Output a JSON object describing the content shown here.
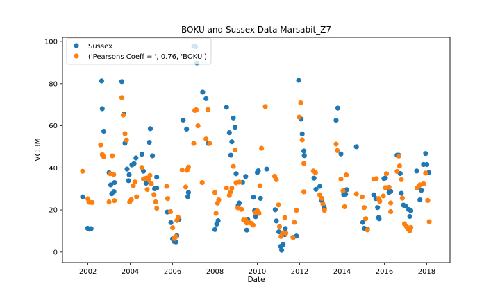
{
  "chart_data": {
    "type": "scatter",
    "title": "BOKU and Sussex Data Marsabit_Z7",
    "xlabel": "Date",
    "ylabel": "VCI3M",
    "xlim": [
      2000.8,
      2019.1
    ],
    "ylim": [
      -5,
      102
    ],
    "xticks": [
      2002,
      2004,
      2006,
      2008,
      2010,
      2012,
      2014,
      2016,
      2018
    ],
    "xtick_labels": [
      "2002",
      "2004",
      "2006",
      "2008",
      "2010",
      "2012",
      "2014",
      "2016",
      "2018"
    ],
    "yticks": [
      0,
      20,
      40,
      60,
      80,
      100
    ],
    "ytick_labels": [
      "0",
      "20",
      "40",
      "60",
      "80",
      "100"
    ],
    "grid": false,
    "legend_position": "top-left",
    "series": [
      {
        "name": "Sussex",
        "color": "#1f77b4",
        "points": [
          [
            2001.75,
            26.2
          ],
          [
            2001.99,
            11.3
          ],
          [
            2002.09,
            10.9
          ],
          [
            2002.15,
            11.1
          ],
          [
            2002.65,
            81.3
          ],
          [
            2002.68,
            68.1
          ],
          [
            2002.75,
            57.4
          ],
          [
            2003.0,
            37.7
          ],
          [
            2003.08,
            31.9
          ],
          [
            2003.13,
            27.7
          ],
          [
            2003.23,
            28.7
          ],
          [
            2003.26,
            33.0
          ],
          [
            2003.6,
            81.0
          ],
          [
            2003.7,
            65.6
          ],
          [
            2003.75,
            51.7
          ],
          [
            2003.85,
            39.4
          ],
          [
            2003.92,
            33.9
          ],
          [
            2003.95,
            36.7
          ],
          [
            2004.08,
            41.4
          ],
          [
            2004.18,
            42.0
          ],
          [
            2004.27,
            44.7
          ],
          [
            2004.55,
            46.5
          ],
          [
            2004.62,
            38.4
          ],
          [
            2004.75,
            32.7
          ],
          [
            2004.83,
            34.6
          ],
          [
            2004.9,
            52.1
          ],
          [
            2004.95,
            58.6
          ],
          [
            2005.05,
            45.7
          ],
          [
            2005.15,
            30.1
          ],
          [
            2005.25,
            35.6
          ],
          [
            2005.25,
            30.4
          ],
          [
            2005.75,
            19.0
          ],
          [
            2005.92,
            14.0
          ],
          [
            2006.0,
            6.3
          ],
          [
            2006.08,
            5.0
          ],
          [
            2006.16,
            4.8
          ],
          [
            2006.2,
            7.8
          ],
          [
            2006.3,
            15.5
          ],
          [
            2006.5,
            62.7
          ],
          [
            2006.66,
            58.4
          ],
          [
            2006.72,
            26.3
          ],
          [
            2006.75,
            28.3
          ],
          [
            2007.0,
            97.8
          ],
          [
            2007.08,
            97.6
          ],
          [
            2007.15,
            89.8
          ],
          [
            2007.42,
            76.0
          ],
          [
            2007.58,
            72.9
          ],
          [
            2007.68,
            51.6
          ],
          [
            2008.0,
            10.7
          ],
          [
            2008.08,
            13.3
          ],
          [
            2008.15,
            14.9
          ],
          [
            2008.55,
            68.8
          ],
          [
            2008.68,
            56.7
          ],
          [
            2008.75,
            46.0
          ],
          [
            2008.8,
            52.4
          ],
          [
            2008.87,
            63.7
          ],
          [
            2008.95,
            59.3
          ],
          [
            2009.0,
            37.2
          ],
          [
            2009.1,
            22.2
          ],
          [
            2009.15,
            23.3
          ],
          [
            2009.3,
            33.1
          ],
          [
            2009.45,
            35.9
          ],
          [
            2009.5,
            10.4
          ],
          [
            2009.55,
            15.4
          ],
          [
            2009.82,
            26.0
          ],
          [
            2009.87,
            19.6
          ],
          [
            2009.92,
            16.8
          ],
          [
            2010.0,
            37.8
          ],
          [
            2010.05,
            38.6
          ],
          [
            2010.15,
            25.5
          ],
          [
            2010.45,
            39.4
          ],
          [
            2010.85,
            20.1
          ],
          [
            2010.9,
            14.8
          ],
          [
            2011.02,
            9.6
          ],
          [
            2011.1,
            2.7
          ],
          [
            2011.15,
            0.9
          ],
          [
            2011.22,
            3.6
          ],
          [
            2011.3,
            8.3
          ],
          [
            2011.32,
            11.2
          ],
          [
            2011.7,
            7.0
          ],
          [
            2011.85,
            7.6
          ],
          [
            2011.95,
            81.6
          ],
          [
            2012.07,
            63.2
          ],
          [
            2012.12,
            56.1
          ],
          [
            2012.2,
            48.0
          ],
          [
            2012.22,
            45.8
          ],
          [
            2012.68,
            35.1
          ],
          [
            2012.77,
            29.8
          ],
          [
            2012.95,
            31.2
          ],
          [
            2013.05,
            24.4
          ],
          [
            2013.15,
            21.5
          ],
          [
            2013.17,
            20.7
          ],
          [
            2013.72,
            62.6
          ],
          [
            2013.8,
            68.4
          ],
          [
            2013.95,
            46.6
          ],
          [
            2014.08,
            27.3
          ],
          [
            2014.17,
            27.5
          ],
          [
            2014.22,
            29.6
          ],
          [
            2014.68,
            50.0
          ],
          [
            2014.98,
            14.1
          ],
          [
            2015.05,
            11.3
          ],
          [
            2015.2,
            10.9
          ],
          [
            2015.5,
            27.2
          ],
          [
            2015.6,
            25.4
          ],
          [
            2015.68,
            21.1
          ],
          [
            2015.73,
            16.4
          ],
          [
            2015.75,
            15.8
          ],
          [
            2015.98,
            34.9
          ],
          [
            2016.05,
            35.2
          ],
          [
            2016.15,
            30.4
          ],
          [
            2016.22,
            28.4
          ],
          [
            2016.3,
            28.8
          ],
          [
            2016.6,
            46.0
          ],
          [
            2016.68,
            46.0
          ],
          [
            2016.75,
            37.3
          ],
          [
            2016.8,
            27.9
          ],
          [
            2016.9,
            22.3
          ],
          [
            2017.0,
            21.8
          ],
          [
            2017.15,
            20.2
          ],
          [
            2017.2,
            16.9
          ],
          [
            2017.25,
            19.6
          ],
          [
            2017.53,
            38.5
          ],
          [
            2017.68,
            24.8
          ],
          [
            2017.75,
            29.3
          ],
          [
            2017.85,
            41.6
          ],
          [
            2017.95,
            46.8
          ],
          [
            2018.0,
            41.6
          ],
          [
            2018.1,
            37.8
          ]
        ]
      },
      {
        "name": "('Pearsons Coeff = ', 0.76, 'BOKU')",
        "color": "#ff7f0e",
        "points": [
          [
            2001.75,
            38.4
          ],
          [
            2002.0,
            25.3
          ],
          [
            2002.05,
            23.7
          ],
          [
            2002.1,
            23.6
          ],
          [
            2002.2,
            23.5
          ],
          [
            2002.6,
            50.9
          ],
          [
            2002.68,
            46.3
          ],
          [
            2002.75,
            45.3
          ],
          [
            2003.0,
            23.8
          ],
          [
            2003.05,
            37.2
          ],
          [
            2003.15,
            45.7
          ],
          [
            2003.22,
            36.8
          ],
          [
            2003.25,
            24.4
          ],
          [
            2003.6,
            73.4
          ],
          [
            2003.67,
            65.1
          ],
          [
            2003.75,
            56.2
          ],
          [
            2003.82,
            53.2
          ],
          [
            2003.97,
            23.8
          ],
          [
            2004.05,
            24.9
          ],
          [
            2004.15,
            31.5
          ],
          [
            2004.22,
            33.3
          ],
          [
            2004.3,
            26.2
          ],
          [
            2004.55,
            40.2
          ],
          [
            2004.62,
            34.7
          ],
          [
            2004.75,
            35.1
          ],
          [
            2004.8,
            29.7
          ],
          [
            2004.88,
            34.3
          ],
          [
            2004.93,
            36.4
          ],
          [
            2005.0,
            32.4
          ],
          [
            2005.12,
            27.3
          ],
          [
            2005.2,
            23.8
          ],
          [
            2005.25,
            20.8
          ],
          [
            2005.72,
            31.2
          ],
          [
            2005.77,
            25.4
          ],
          [
            2005.9,
            19.2
          ],
          [
            2006.0,
            11.6
          ],
          [
            2006.08,
            6.4
          ],
          [
            2006.15,
            7.4
          ],
          [
            2006.2,
            15.0
          ],
          [
            2006.26,
            16.5
          ],
          [
            2006.45,
            38.9
          ],
          [
            2006.62,
            30.9
          ],
          [
            2006.68,
            38.8
          ],
          [
            2006.75,
            40.3
          ],
          [
            2007.0,
            51.6
          ],
          [
            2007.05,
            67.3
          ],
          [
            2007.12,
            67.6
          ],
          [
            2007.2,
            60.0
          ],
          [
            2007.4,
            33.0
          ],
          [
            2007.58,
            53.7
          ],
          [
            2007.67,
            67.7
          ],
          [
            2007.75,
            51.6
          ],
          [
            2008.0,
            28.3
          ],
          [
            2008.05,
            18.4
          ],
          [
            2008.12,
            23.2
          ],
          [
            2008.18,
            24.8
          ],
          [
            2008.55,
            30.4
          ],
          [
            2008.68,
            26.9
          ],
          [
            2008.75,
            28.6
          ],
          [
            2008.8,
            30.4
          ],
          [
            2008.87,
            40.7
          ],
          [
            2008.95,
            48.5
          ],
          [
            2009.0,
            32.9
          ],
          [
            2009.08,
            21.0
          ],
          [
            2009.15,
            33.2
          ],
          [
            2009.25,
            20.3
          ],
          [
            2009.35,
            15.2
          ],
          [
            2009.45,
            15.1
          ],
          [
            2009.5,
            13.8
          ],
          [
            2009.6,
            14.2
          ],
          [
            2009.72,
            13.6
          ],
          [
            2009.8,
            12.8
          ],
          [
            2009.9,
            18.8
          ],
          [
            2010.0,
            19.6
          ],
          [
            2010.08,
            18.4
          ],
          [
            2010.12,
            31.5
          ],
          [
            2010.2,
            49.3
          ],
          [
            2010.38,
            69.1
          ],
          [
            2010.82,
            36.0
          ],
          [
            2010.9,
            34.4
          ],
          [
            2011.0,
            22.4
          ],
          [
            2011.05,
            12.1
          ],
          [
            2011.12,
            7.4
          ],
          [
            2011.2,
            9.1
          ],
          [
            2011.3,
            16.4
          ],
          [
            2011.35,
            9.0
          ],
          [
            2011.68,
            7.0
          ],
          [
            2011.75,
            14.1
          ],
          [
            2011.85,
            19.8
          ],
          [
            2011.98,
            64.1
          ],
          [
            2012.05,
            70.9
          ],
          [
            2012.12,
            53.3
          ],
          [
            2012.2,
            42.1
          ],
          [
            2012.2,
            28.6
          ],
          [
            2012.65,
            38.5
          ],
          [
            2012.75,
            37.7
          ],
          [
            2012.95,
            27.2
          ],
          [
            2013.05,
            25.5
          ],
          [
            2013.1,
            22.8
          ],
          [
            2013.17,
            19.8
          ],
          [
            2013.72,
            51.3
          ],
          [
            2013.78,
            48.2
          ],
          [
            2013.95,
            34.6
          ],
          [
            2014.05,
            29.1
          ],
          [
            2014.12,
            21.5
          ],
          [
            2014.2,
            36.6
          ],
          [
            2014.68,
            27.6
          ],
          [
            2014.95,
            26.2
          ],
          [
            2015.05,
            21.1
          ],
          [
            2015.12,
            15.8
          ],
          [
            2015.2,
            10.5
          ],
          [
            2015.5,
            34.6
          ],
          [
            2015.62,
            34.9
          ],
          [
            2015.73,
            25.4
          ],
          [
            2015.78,
            24.1
          ],
          [
            2015.95,
            26.6
          ],
          [
            2016.05,
            30.6
          ],
          [
            2016.1,
            37.2
          ],
          [
            2016.22,
            30.8
          ],
          [
            2016.3,
            19.2
          ],
          [
            2016.3,
            23.3
          ],
          [
            2016.6,
            38.3
          ],
          [
            2016.68,
            45.6
          ],
          [
            2016.72,
            40.9
          ],
          [
            2016.8,
            34.4
          ],
          [
            2016.85,
            25.6
          ],
          [
            2016.95,
            13.4
          ],
          [
            2017.05,
            12.1
          ],
          [
            2017.15,
            10.7
          ],
          [
            2017.2,
            10.1
          ],
          [
            2017.25,
            11.7
          ],
          [
            2017.55,
            30.4
          ],
          [
            2017.62,
            31.2
          ],
          [
            2017.68,
            31.9
          ],
          [
            2017.85,
            32.4
          ],
          [
            2017.95,
            37.5
          ],
          [
            2018.05,
            24.5
          ],
          [
            2018.12,
            14.4
          ]
        ]
      }
    ]
  }
}
